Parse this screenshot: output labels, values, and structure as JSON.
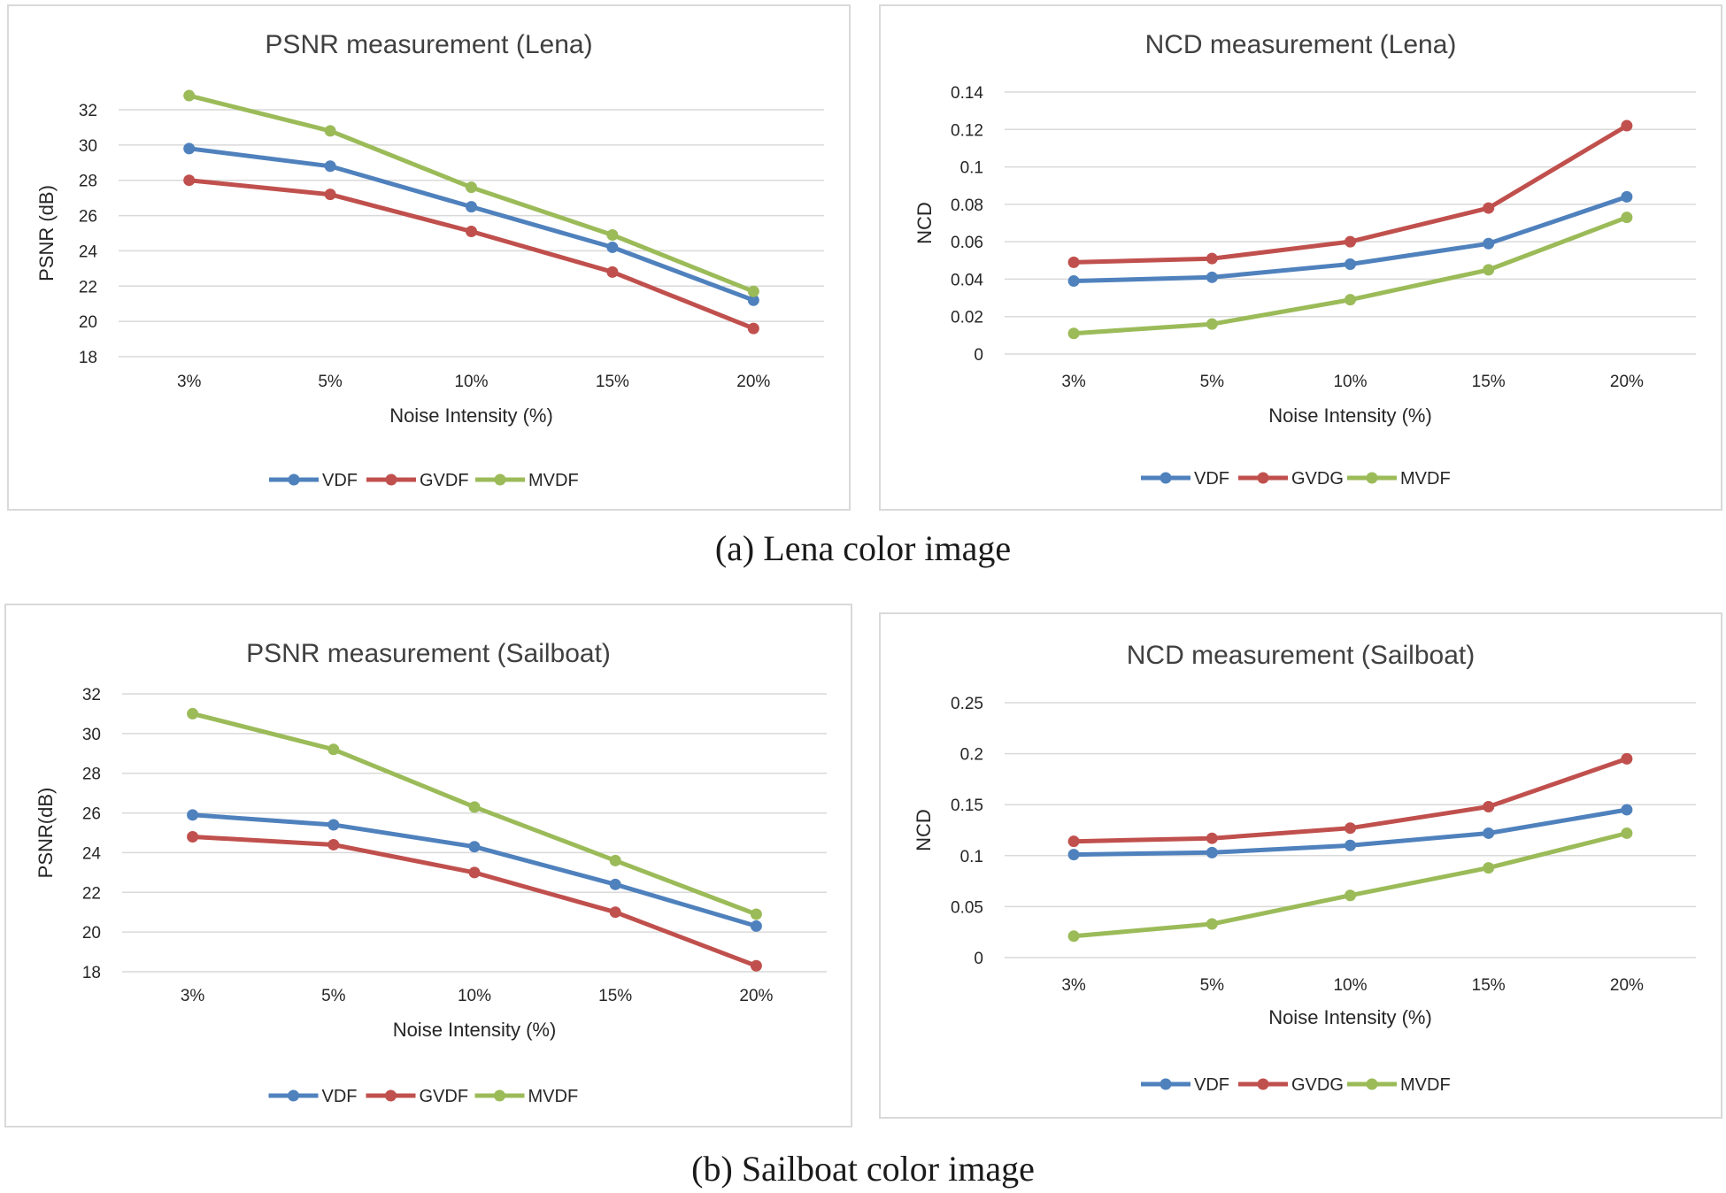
{
  "colors": {
    "blue": "#4f81bd",
    "red": "#c0504d",
    "green": "#9bbb59",
    "grid": "#d9d9d9"
  },
  "captions": {
    "a": "(a) Lena color image",
    "b": "(b) Sailboat color image"
  },
  "chart_data": [
    {
      "type": "line",
      "title": "PSNR measurement (Lena)",
      "xlabel": "Noise Intensity (%)",
      "ylabel": "PSNR (dB)",
      "categories": [
        "3%",
        "5%",
        "10%",
        "15%",
        "20%"
      ],
      "ylim": [
        18,
        32
      ],
      "yticks": [
        18,
        20,
        22,
        24,
        26,
        28,
        30,
        32
      ],
      "ytick_labels": [
        "18",
        "20",
        "22",
        "24",
        "26",
        "28",
        "30",
        "32"
      ],
      "grid": true,
      "legend": "bottom",
      "series": [
        {
          "name": "VDF",
          "color": "#4f81bd",
          "values": [
            29.8,
            28.8,
            26.5,
            24.2,
            21.2
          ]
        },
        {
          "name": "GVDF",
          "color": "#c0504d",
          "values": [
            28.0,
            27.2,
            25.1,
            22.8,
            19.6
          ]
        },
        {
          "name": "MVDF",
          "color": "#9bbb59",
          "values": [
            32.8,
            30.8,
            27.6,
            24.9,
            21.7
          ]
        }
      ]
    },
    {
      "type": "line",
      "title": "NCD measurement (Lena)",
      "xlabel": "Noise Intensity (%)",
      "ylabel": "NCD",
      "categories": [
        "3%",
        "5%",
        "10%",
        "15%",
        "20%"
      ],
      "ylim": [
        0,
        0.14
      ],
      "yticks": [
        0,
        0.02,
        0.04,
        0.06,
        0.08,
        0.1,
        0.12,
        0.14
      ],
      "ytick_labels": [
        "0",
        "0.02",
        "0.04",
        "0.06",
        "0.08",
        "0.1",
        "0.12",
        "0.14"
      ],
      "grid": true,
      "legend": "bottom",
      "series": [
        {
          "name": "VDF",
          "color": "#4f81bd",
          "values": [
            0.039,
            0.041,
            0.048,
            0.059,
            0.084
          ]
        },
        {
          "name": "GVDG",
          "color": "#c0504d",
          "values": [
            0.049,
            0.051,
            0.06,
            0.078,
            0.122
          ]
        },
        {
          "name": "MVDF",
          "color": "#9bbb59",
          "values": [
            0.011,
            0.016,
            0.029,
            0.045,
            0.073
          ]
        }
      ]
    },
    {
      "type": "line",
      "title": "PSNR measurement (Sailboat)",
      "xlabel": "Noise Intensity (%)",
      "ylabel": "PSNR(dB)",
      "categories": [
        "3%",
        "5%",
        "10%",
        "15%",
        "20%"
      ],
      "ylim": [
        18,
        32
      ],
      "yticks": [
        18,
        20,
        22,
        24,
        26,
        28,
        30,
        32
      ],
      "ytick_labels": [
        "18",
        "20",
        "22",
        "24",
        "26",
        "28",
        "30",
        "32"
      ],
      "grid": true,
      "legend": "bottom",
      "series": [
        {
          "name": "VDF",
          "color": "#4f81bd",
          "values": [
            25.9,
            25.4,
            24.3,
            22.4,
            20.3
          ]
        },
        {
          "name": "GVDF",
          "color": "#c0504d",
          "values": [
            24.8,
            24.4,
            23.0,
            21.0,
            18.3
          ]
        },
        {
          "name": "MVDF",
          "color": "#9bbb59",
          "values": [
            31.0,
            29.2,
            26.3,
            23.6,
            20.9
          ]
        }
      ]
    },
    {
      "type": "line",
      "title": "NCD measurement (Sailboat)",
      "xlabel": "Noise Intensity (%)",
      "ylabel": "NCD",
      "categories": [
        "3%",
        "5%",
        "10%",
        "15%",
        "20%"
      ],
      "ylim": [
        0,
        0.25
      ],
      "yticks": [
        0,
        0.05,
        0.1,
        0.15,
        0.2,
        0.25
      ],
      "ytick_labels": [
        "0",
        "0.05",
        "0.1",
        "0.15",
        "0.2",
        "0.25"
      ],
      "grid": true,
      "legend": "bottom",
      "series": [
        {
          "name": "VDF",
          "color": "#4f81bd",
          "values": [
            0.101,
            0.103,
            0.11,
            0.122,
            0.145
          ]
        },
        {
          "name": "GVDG",
          "color": "#c0504d",
          "values": [
            0.114,
            0.117,
            0.127,
            0.148,
            0.195
          ]
        },
        {
          "name": "MVDF",
          "color": "#9bbb59",
          "values": [
            0.021,
            0.033,
            0.061,
            0.088,
            0.122
          ]
        }
      ]
    }
  ]
}
